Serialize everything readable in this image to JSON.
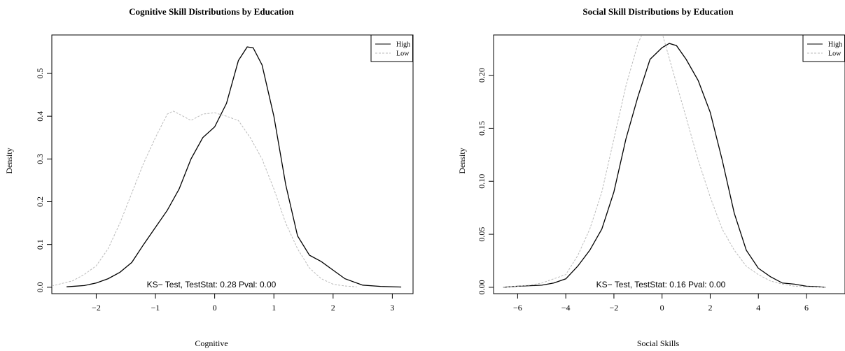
{
  "chart_data": [
    {
      "type": "line",
      "title": "Cognitive Skill Distributions by Education",
      "xlabel": "Cognitive",
      "ylabel": "Density",
      "xlim": [
        -2.75,
        3.35
      ],
      "ylim": [
        -0.015,
        0.59
      ],
      "xticks": [
        -2,
        -1,
        0,
        1,
        2,
        3
      ],
      "xtick_labels": [
        "−2",
        "−1",
        "0",
        "1",
        "2",
        "3"
      ],
      "yticks": [
        0.0,
        0.1,
        0.2,
        0.3,
        0.4,
        0.5
      ],
      "ytick_labels": [
        "0.0",
        "0.1",
        "0.2",
        "0.3",
        "0.4",
        "0.5"
      ],
      "grid": false,
      "legend_position": "top-right",
      "annotation": "KS− Test, TestStat: 0.28 Pval: 0.00",
      "series": [
        {
          "name": "High",
          "color": "#000000",
          "dash": "solid",
          "x": [
            -2.5,
            -2.2,
            -2.0,
            -1.8,
            -1.6,
            -1.4,
            -1.2,
            -1.0,
            -0.8,
            -0.6,
            -0.4,
            -0.2,
            0.0,
            0.2,
            0.4,
            0.55,
            0.65,
            0.8,
            1.0,
            1.2,
            1.4,
            1.6,
            1.8,
            2.0,
            2.2,
            2.5,
            2.8,
            3.15
          ],
          "values": [
            0.001,
            0.004,
            0.01,
            0.02,
            0.035,
            0.058,
            0.1,
            0.14,
            0.18,
            0.23,
            0.3,
            0.35,
            0.375,
            0.43,
            0.53,
            0.562,
            0.56,
            0.52,
            0.4,
            0.24,
            0.12,
            0.075,
            0.06,
            0.04,
            0.02,
            0.005,
            0.002,
            0.0005
          ]
        },
        {
          "name": "Low",
          "color": "#bbbbbb",
          "dash": "dashed",
          "x": [
            -2.75,
            -2.4,
            -2.2,
            -2.0,
            -1.8,
            -1.6,
            -1.4,
            -1.2,
            -1.0,
            -0.8,
            -0.7,
            -0.6,
            -0.4,
            -0.2,
            0.0,
            0.2,
            0.4,
            0.6,
            0.8,
            1.0,
            1.2,
            1.4,
            1.6,
            1.8,
            2.0,
            2.2,
            2.4
          ],
          "values": [
            0.003,
            0.015,
            0.03,
            0.05,
            0.09,
            0.15,
            0.22,
            0.29,
            0.35,
            0.405,
            0.412,
            0.405,
            0.39,
            0.405,
            0.408,
            0.4,
            0.39,
            0.35,
            0.3,
            0.23,
            0.15,
            0.09,
            0.045,
            0.02,
            0.007,
            0.003,
            0.001
          ]
        }
      ]
    },
    {
      "type": "line",
      "title": "Social Skill Distributions by Education",
      "xlabel": "Social Skills",
      "ylabel": "Density",
      "xlim": [
        -7.0,
        7.6
      ],
      "ylim": [
        -0.006,
        0.238
      ],
      "xticks": [
        -6,
        -4,
        -2,
        0,
        2,
        4,
        6
      ],
      "xtick_labels": [
        "−6",
        "−4",
        "−2",
        "0",
        "2",
        "4",
        "6"
      ],
      "yticks": [
        0.0,
        0.05,
        0.1,
        0.15,
        0.2
      ],
      "ytick_labels": [
        "0.00",
        "0.05",
        "0.10",
        "0.15",
        "0.20"
      ],
      "grid": false,
      "legend_position": "top-right",
      "annotation": "KS− Test, TestStat: 0.16 Pval: 0.00",
      "series": [
        {
          "name": "High",
          "color": "#000000",
          "dash": "solid",
          "x": [
            -6.6,
            -6.0,
            -5.0,
            -4.5,
            -4.0,
            -3.5,
            -3.0,
            -2.5,
            -2.0,
            -1.5,
            -1.0,
            -0.5,
            0.0,
            0.3,
            0.6,
            1.0,
            1.5,
            2.0,
            2.5,
            3.0,
            3.5,
            4.0,
            4.5,
            5.0,
            5.5,
            6.0,
            6.5,
            6.8
          ],
          "values": [
            0.0,
            0.001,
            0.002,
            0.004,
            0.008,
            0.02,
            0.035,
            0.055,
            0.09,
            0.14,
            0.18,
            0.215,
            0.226,
            0.23,
            0.228,
            0.215,
            0.195,
            0.165,
            0.12,
            0.07,
            0.035,
            0.018,
            0.01,
            0.004,
            0.003,
            0.001,
            0.0005,
            0.0
          ]
        },
        {
          "name": "Low",
          "color": "#bbbbbb",
          "dash": "dashed",
          "x": [
            -6.6,
            -5.5,
            -5.0,
            -4.5,
            -4.0,
            -3.5,
            -3.0,
            -2.5,
            -2.0,
            -1.5,
            -1.0,
            -0.5,
            0.0,
            0.5,
            1.0,
            1.5,
            2.0,
            2.5,
            3.0,
            3.5,
            4.0,
            4.5,
            5.0,
            5.5,
            6.0,
            6.8
          ],
          "values": [
            0.0,
            0.002,
            0.004,
            0.008,
            0.012,
            0.03,
            0.055,
            0.09,
            0.14,
            0.19,
            0.23,
            0.255,
            0.24,
            0.2,
            0.16,
            0.12,
            0.085,
            0.055,
            0.035,
            0.02,
            0.012,
            0.006,
            0.003,
            0.001,
            0.0005,
            0.0
          ]
        }
      ]
    }
  ]
}
